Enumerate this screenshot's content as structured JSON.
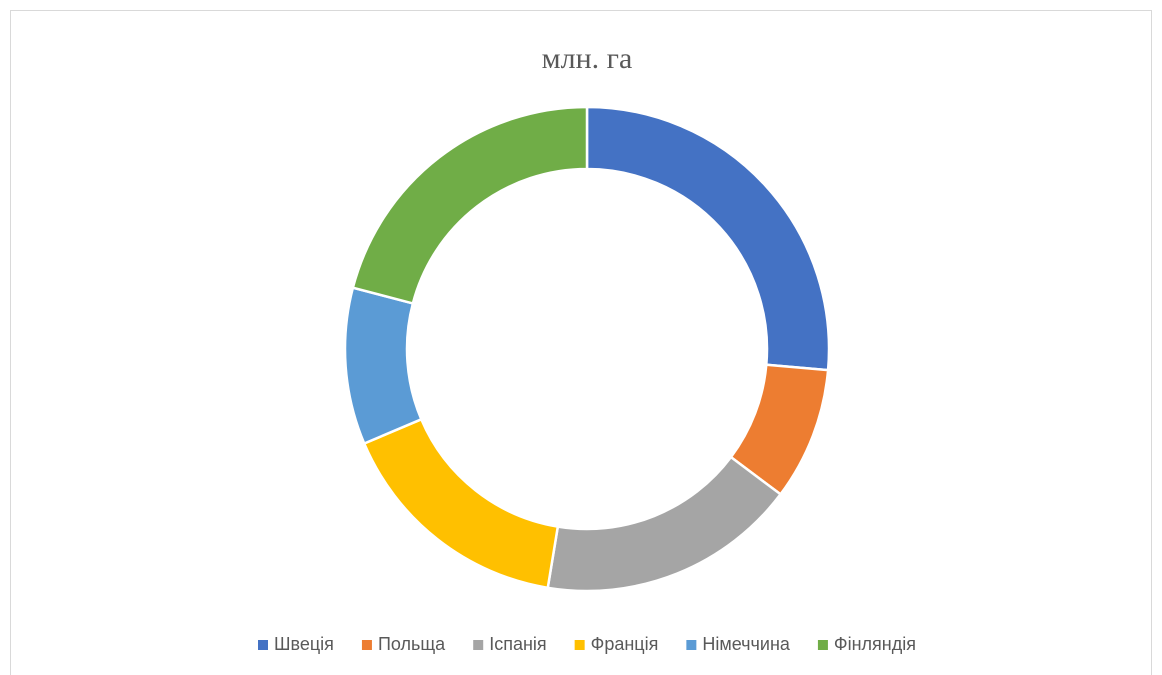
{
  "chart_data": {
    "type": "donut",
    "title": "млн. га",
    "categories": [
      "Швеція",
      "Польща",
      "Іспанія",
      "Франція",
      "Німеччина",
      "Фінляндія"
    ],
    "values": [
      28,
      9.4,
      18.4,
      17,
      11.1,
      22.2
    ],
    "colors": [
      "#4472c4",
      "#ed7d31",
      "#a5a5a5",
      "#ffc000",
      "#5b9bd5",
      "#70ad47"
    ],
    "legend": "bottom"
  }
}
